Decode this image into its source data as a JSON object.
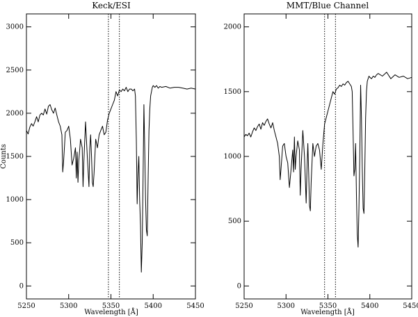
{
  "chart_data": [
    {
      "type": "line",
      "title": "Keck/ESI",
      "xlabel": "Wavelength [Å]",
      "ylabel": "Counts",
      "xlim": [
        5250,
        5450
      ],
      "ylim": [
        -150,
        3150
      ],
      "x_ticks": [
        5250,
        5300,
        5350,
        5400,
        5450
      ],
      "y_ticks": [
        0,
        500,
        1000,
        1500,
        2000,
        2500,
        3000
      ],
      "vertical_markers": [
        5347,
        5360
      ],
      "grid": false,
      "series": [
        {
          "x": [
            5250,
            5252,
            5254,
            5256,
            5258,
            5260,
            5262,
            5264,
            5266,
            5268,
            5270,
            5272,
            5274,
            5276,
            5278,
            5280,
            5282,
            5284,
            5286,
            5288,
            5290,
            5292,
            5293,
            5294,
            5296,
            5298,
            5300,
            5302,
            5304,
            5306,
            5308,
            5309,
            5310,
            5311,
            5312,
            5314,
            5316,
            5317,
            5318,
            5320,
            5322,
            5324,
            5325,
            5326,
            5327,
            5328,
            5329,
            5330,
            5332,
            5334,
            5336,
            5338,
            5340,
            5342,
            5344,
            5346,
            5348,
            5350,
            5352,
            5354,
            5356,
            5358,
            5360,
            5362,
            5364,
            5366,
            5368,
            5370,
            5372,
            5374,
            5376,
            5378,
            5379,
            5380,
            5381,
            5382,
            5383,
            5384,
            5385,
            5386,
            5387,
            5388,
            5389,
            5390,
            5391,
            5392,
            5393,
            5394,
            5395,
            5396,
            5397,
            5398,
            5399,
            5400,
            5402,
            5404,
            5406,
            5408,
            5410,
            5415,
            5420,
            5425,
            5430,
            5435,
            5440,
            5445,
            5450
          ],
          "y": [
            1800,
            1760,
            1840,
            1880,
            1850,
            1900,
            1960,
            1900,
            1980,
            2000,
            1980,
            2050,
            1990,
            2080,
            2100,
            2040,
            2000,
            2060,
            1980,
            1900,
            1850,
            1750,
            1320,
            1450,
            1780,
            1800,
            1850,
            1700,
            1400,
            1480,
            1600,
            1250,
            1550,
            1200,
            1450,
            1700,
            1600,
            1150,
            1450,
            1900,
            1500,
            1150,
            1600,
            1750,
            1500,
            1200,
            1150,
            1300,
            1700,
            1600,
            1750,
            1800,
            1850,
            1750,
            1780,
            1920,
            2000,
            2050,
            2100,
            2150,
            2250,
            2200,
            2270,
            2250,
            2280,
            2260,
            2300,
            2250,
            2280,
            2280,
            2260,
            2280,
            2200,
            1700,
            950,
            1300,
            1500,
            1000,
            700,
            160,
            500,
            1250,
            2100,
            1600,
            1000,
            650,
            580,
            1250,
            1800,
            2050,
            2200,
            2250,
            2300,
            2320,
            2300,
            2320,
            2290,
            2310,
            2300,
            2310,
            2290,
            2300,
            2300,
            2290,
            2280,
            2290,
            2280
          ]
        }
      ]
    },
    {
      "type": "line",
      "title": "MMT/Blue Channel",
      "xlabel": "Wavelength [Å]",
      "ylabel": "",
      "xlim": [
        5250,
        5450
      ],
      "ylim": [
        -100,
        2100
      ],
      "x_ticks": [
        5250,
        5300,
        5350,
        5400,
        5450
      ],
      "y_ticks": [
        0,
        500,
        1000,
        1500,
        2000
      ],
      "vertical_markers": [
        5346,
        5359
      ],
      "grid": false,
      "series": [
        {
          "x": [
            5250,
            5252,
            5254,
            5256,
            5258,
            5260,
            5262,
            5264,
            5266,
            5268,
            5270,
            5272,
            5274,
            5276,
            5278,
            5280,
            5282,
            5284,
            5286,
            5288,
            5290,
            5292,
            5293,
            5294,
            5296,
            5298,
            5300,
            5302,
            5304,
            5306,
            5308,
            5309,
            5310,
            5311,
            5312,
            5314,
            5316,
            5317,
            5318,
            5320,
            5322,
            5324,
            5325,
            5326,
            5327,
            5328,
            5329,
            5330,
            5332,
            5334,
            5336,
            5338,
            5340,
            5342,
            5344,
            5346,
            5348,
            5350,
            5352,
            5354,
            5356,
            5358,
            5360,
            5362,
            5364,
            5366,
            5368,
            5370,
            5372,
            5374,
            5376,
            5378,
            5379,
            5380,
            5381,
            5382,
            5383,
            5384,
            5385,
            5386,
            5387,
            5388,
            5389,
            5390,
            5391,
            5392,
            5393,
            5394,
            5395,
            5396,
            5397,
            5398,
            5399,
            5400,
            5402,
            5404,
            5406,
            5408,
            5410,
            5415,
            5420,
            5425,
            5430,
            5435,
            5440,
            5445,
            5450
          ],
          "y": [
            1150,
            1170,
            1160,
            1180,
            1150,
            1190,
            1220,
            1200,
            1230,
            1250,
            1210,
            1260,
            1240,
            1270,
            1290,
            1250,
            1220,
            1260,
            1200,
            1150,
            1100,
            1000,
            820,
            900,
            1080,
            1100,
            1000,
            950,
            760,
            900,
            1050,
            880,
            1150,
            900,
            1000,
            1120,
            1050,
            700,
            900,
            1200,
            1000,
            640,
            900,
            1100,
            880,
            620,
            580,
            800,
            1100,
            1000,
            1080,
            1100,
            1050,
            900,
            1100,
            1250,
            1300,
            1350,
            1400,
            1450,
            1500,
            1480,
            1520,
            1530,
            1550,
            1540,
            1560,
            1550,
            1570,
            1580,
            1560,
            1540,
            1500,
            1200,
            850,
            900,
            1100,
            700,
            400,
            300,
            600,
            1000,
            1550,
            1300,
            900,
            600,
            560,
            900,
            1300,
            1500,
            1580,
            1600,
            1620,
            1610,
            1600,
            1620,
            1610,
            1630,
            1640,
            1620,
            1650,
            1600,
            1630,
            1610,
            1620,
            1600,
            1610
          ]
        }
      ]
    }
  ]
}
